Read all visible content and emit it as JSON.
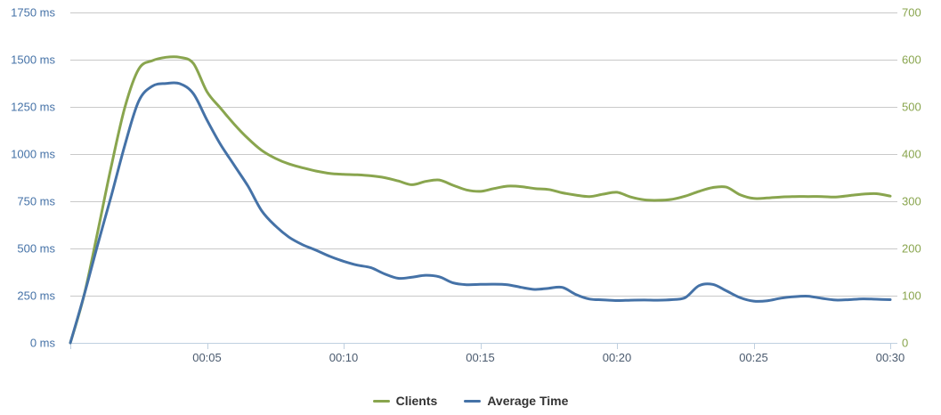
{
  "chart_data": {
    "type": "line",
    "title": "",
    "background_color": "#FFFFFF",
    "grid_color": "#C9C9C9",
    "axis_line_color": "#C0D0E0",
    "x_axis": {
      "label_color": "#4A5A6E",
      "tick_minutes": [
        0,
        5,
        10,
        15,
        20,
        25,
        30
      ],
      "tick_labels": [
        "",
        "00:05",
        "00:10",
        "00:15",
        "00:20",
        "00:25",
        "00:30"
      ],
      "range_minutes": [
        0,
        30
      ]
    },
    "left_axis": {
      "title": "",
      "color": "#4572A7",
      "values": [
        1750,
        1500,
        1250,
        1000,
        750,
        500,
        250,
        0
      ],
      "labels": [
        "1750 ms",
        "1500 ms",
        "1250 ms",
        "1000 ms",
        "750 ms",
        "500 ms",
        "250 ms",
        "0 ms"
      ],
      "range": [
        0,
        1750
      ]
    },
    "right_axis": {
      "title": "",
      "color": "#89A54E",
      "values": [
        700,
        600,
        500,
        400,
        300,
        200,
        100,
        0
      ],
      "labels": [
        "700",
        "600",
        "500",
        "400",
        "300",
        "200",
        "100",
        "0"
      ],
      "range": [
        0,
        700
      ]
    },
    "x_minutes": [
      0,
      0.5,
      1,
      1.5,
      2,
      2.5,
      3,
      3.5,
      4,
      4.5,
      5,
      5.5,
      6,
      6.5,
      7,
      7.5,
      8,
      8.5,
      9,
      9.5,
      10,
      10.5,
      11,
      11.5,
      12,
      12.5,
      13,
      13.5,
      14,
      14.5,
      15,
      15.5,
      16,
      16.5,
      17,
      17.5,
      18,
      18.5,
      19,
      19.5,
      20,
      20.5,
      21,
      21.5,
      22,
      22.5,
      23,
      23.5,
      24,
      24.5,
      25,
      25.5,
      26,
      26.5,
      27,
      27.5,
      28,
      28.5,
      29,
      29.5,
      30
    ],
    "series": [
      {
        "name": "Clients",
        "color": "#89A54E",
        "axis": "right",
        "values": [
          0,
          100,
          235,
          375,
          500,
          580,
          598,
          605,
          605,
          592,
          532,
          497,
          463,
          433,
          408,
          391,
          379,
          371,
          364,
          359,
          357,
          356,
          354,
          350,
          343,
          335,
          342,
          345,
          334,
          324,
          321,
          327,
          332,
          331,
          327,
          325,
          318,
          313,
          310,
          315,
          319,
          309,
          303,
          302,
          304,
          311,
          321,
          329,
          330,
          314,
          306,
          307,
          309,
          310,
          310,
          310,
          309,
          312,
          315,
          316,
          311
        ]
      },
      {
        "name": "Average Time",
        "color": "#4572A7",
        "axis": "left",
        "values": [
          0,
          250,
          520,
          780,
          1050,
          1280,
          1360,
          1374,
          1373,
          1320,
          1180,
          1050,
          940,
          830,
          700,
          620,
          560,
          520,
          490,
          458,
          432,
          412,
          398,
          365,
          342,
          348,
          358,
          350,
          318,
          308,
          310,
          311,
          308,
          294,
          283,
          289,
          294,
          256,
          232,
          228,
          224,
          226,
          227,
          226,
          229,
          240,
          303,
          310,
          276,
          240,
          221,
          223,
          237,
          245,
          247,
          236,
          227,
          229,
          233,
          231,
          229
        ]
      }
    ],
    "legend": {
      "position": "bottom-center",
      "items": [
        "Clients",
        "Average Time"
      ]
    },
    "grid": true
  }
}
